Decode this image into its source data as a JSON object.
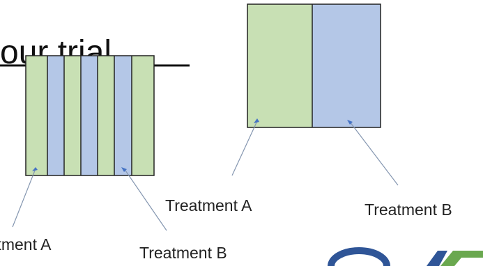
{
  "slide": {
    "title_fragment": "our trial",
    "colors": {
      "treatment_a": "#c8e0b4",
      "treatment_b": "#b4c7e7",
      "outline": "#222222",
      "leader_line": "#8496b0",
      "arrow": "#4472c4",
      "logo_blue": "#2f5597",
      "logo_green": "#6aa84f"
    }
  },
  "diagrams": {
    "strip_plot": {
      "strips": [
        "Treatment A",
        "Treatment B",
        "Treatment A",
        "Treatment B",
        "Treatment A",
        "Treatment B",
        "Treatment A"
      ]
    },
    "block_plot": {
      "blocks": [
        "Treatment A",
        "Treatment B"
      ]
    }
  },
  "labels": {
    "left_a": "Treatment A",
    "left_b": "Treatment B",
    "right_a": "Treatment A",
    "right_b": "Treatment B"
  }
}
